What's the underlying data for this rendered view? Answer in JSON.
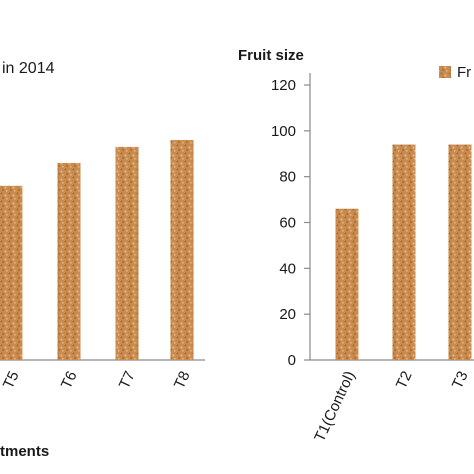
{
  "chart_data": [
    {
      "type": "bar",
      "title": "in  2014",
      "xlabel": "tments",
      "categories": [
        "T5",
        "T6",
        "T7",
        "T8"
      ],
      "values": [
        76,
        86,
        93,
        96
      ],
      "ylim": [
        0,
        120
      ],
      "bar_color": "#c68a4c"
    },
    {
      "type": "bar",
      "title": "Fruit size",
      "legend": "Fr",
      "categories": [
        "T1(Control)",
        "T2",
        "T3"
      ],
      "values": [
        66,
        94,
        94
      ],
      "yticks": [
        0,
        20,
        40,
        60,
        80,
        100,
        120
      ],
      "ylim": [
        0,
        120
      ],
      "bar_color": "#c68a4c"
    }
  ]
}
